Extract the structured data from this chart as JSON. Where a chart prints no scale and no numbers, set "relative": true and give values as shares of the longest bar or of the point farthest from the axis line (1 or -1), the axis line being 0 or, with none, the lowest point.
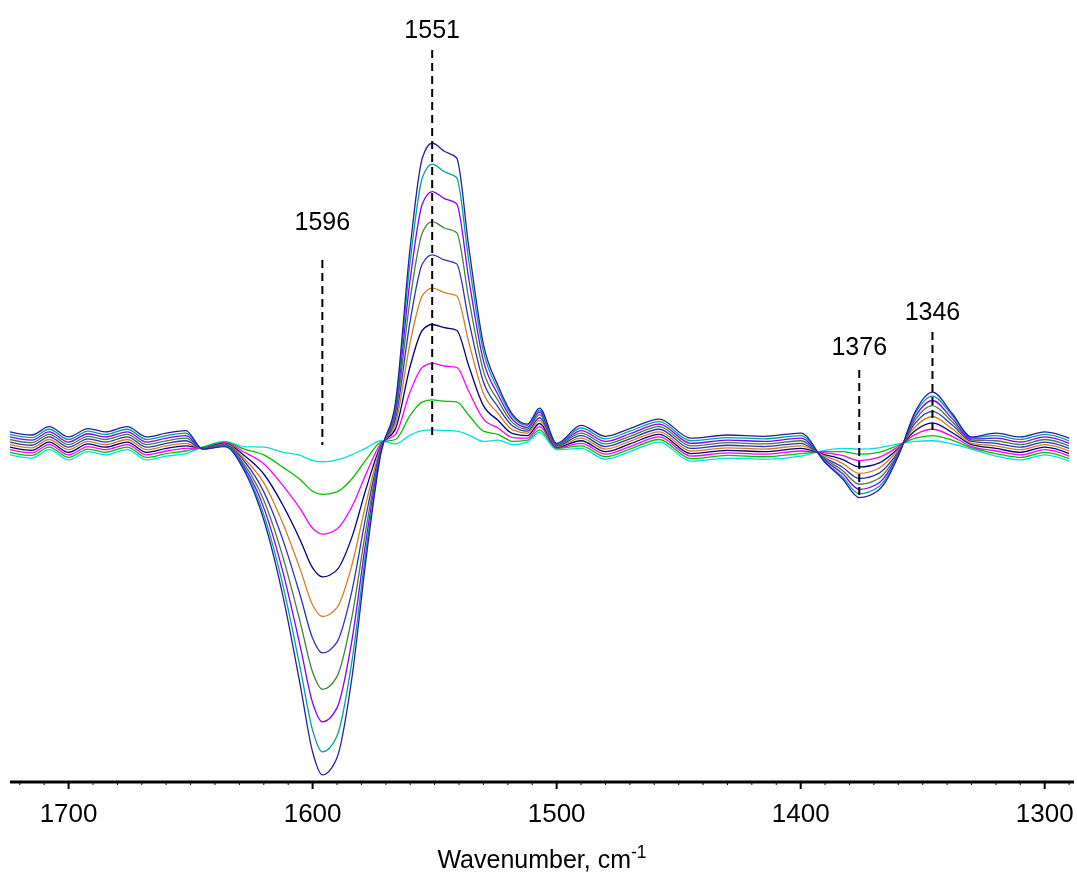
{
  "chart_data": {
    "type": "line",
    "relative": true,
    "xlabel": "Wavenumber, cm$^{-1}$",
    "xlim": [
      1724,
      1288
    ],
    "xticks": [
      {
        "value": 1720,
        "label": null
      },
      {
        "value": 1710,
        "label": null
      },
      1700,
      {
        "value": 1690,
        "label": null
      },
      {
        "value": 1680,
        "label": null
      },
      {
        "value": 1670,
        "label": null
      },
      {
        "value": 1660,
        "label": null
      },
      {
        "value": 1650,
        "label": null
      },
      {
        "value": 1640,
        "label": null
      },
      {
        "value": 1630,
        "label": null
      },
      {
        "value": 1620,
        "label": null
      },
      {
        "value": 1610,
        "label": null
      },
      1600,
      {
        "value": 1590,
        "label": null
      },
      {
        "value": 1580,
        "label": null
      },
      {
        "value": 1570,
        "label": null
      },
      {
        "value": 1560,
        "label": null
      },
      {
        "value": 1550,
        "label": null
      },
      {
        "value": 1540,
        "label": null
      },
      {
        "value": 1530,
        "label": null
      },
      {
        "value": 1520,
        "label": null
      },
      {
        "value": 1510,
        "label": null
      },
      1500,
      {
        "value": 1490,
        "label": null
      },
      {
        "value": 1480,
        "label": null
      },
      {
        "value": 1470,
        "label": null
      },
      {
        "value": 1460,
        "label": null
      },
      {
        "value": 1450,
        "label": null
      },
      {
        "value": 1440,
        "label": null
      },
      {
        "value": 1430,
        "label": null
      },
      {
        "value": 1420,
        "label": null
      },
      {
        "value": 1410,
        "label": null
      },
      1400,
      {
        "value": 1390,
        "label": null
      },
      {
        "value": 1380,
        "label": null
      },
      {
        "value": 1370,
        "label": null
      },
      {
        "value": 1360,
        "label": null
      },
      {
        "value": 1350,
        "label": null
      },
      {
        "value": 1340,
        "label": null
      },
      {
        "value": 1330,
        "label": null
      },
      {
        "value": 1320,
        "label": null
      },
      {
        "value": 1310,
        "label": null
      },
      1300,
      {
        "value": 1290,
        "label": null
      }
    ],
    "x": [
      1724,
      1715,
      1708,
      1700,
      1692,
      1685,
      1676,
      1668,
      1660,
      1652,
      1645,
      1636,
      1628,
      1620,
      1612,
      1605,
      1600,
      1596,
      1590,
      1584,
      1578,
      1572,
      1566,
      1560,
      1555,
      1551,
      1546,
      1541,
      1536,
      1530,
      1524,
      1518,
      1512,
      1507,
      1500,
      1490,
      1480,
      1470,
      1458,
      1445,
      1430,
      1415,
      1400,
      1390,
      1383,
      1376,
      1368,
      1360,
      1353,
      1346,
      1338,
      1330,
      1320,
      1310,
      1300,
      1290
    ],
    "series": [
      {
        "color": "#00e0e0",
        "values": [
          0.512,
          0.507,
          0.52,
          0.504,
          0.517,
          0.512,
          0.52,
          0.504,
          0.51,
          0.514,
          0.524,
          0.533,
          0.525,
          0.524,
          0.516,
          0.511,
          0.503,
          0.501,
          0.504,
          0.512,
          0.523,
          0.534,
          0.529,
          0.543,
          0.55,
          0.551,
          0.55,
          0.549,
          0.543,
          0.533,
          0.535,
          0.528,
          0.532,
          0.547,
          0.52,
          0.522,
          0.505,
          0.517,
          0.532,
          0.502,
          0.507,
          0.505,
          0.51,
          0.519,
          0.522,
          0.521,
          0.523,
          0.529,
          0.533,
          0.534,
          0.529,
          0.521,
          0.51,
          0.504,
          0.512,
          0.502
        ]
      },
      {
        "color": "#00c000",
        "values": [
          0.516,
          0.511,
          0.524,
          0.508,
          0.521,
          0.516,
          0.524,
          0.508,
          0.514,
          0.518,
          0.524,
          0.532,
          0.521,
          0.512,
          0.492,
          0.473,
          0.455,
          0.45,
          0.454,
          0.474,
          0.505,
          0.532,
          0.536,
          0.574,
          0.595,
          0.598,
          0.596,
          0.595,
          0.574,
          0.549,
          0.544,
          0.533,
          0.535,
          0.551,
          0.522,
          0.526,
          0.509,
          0.521,
          0.536,
          0.506,
          0.511,
          0.509,
          0.514,
          0.517,
          0.517,
          0.513,
          0.516,
          0.527,
          0.538,
          0.542,
          0.535,
          0.523,
          0.514,
          0.508,
          0.516,
          0.506
        ]
      },
      {
        "color": "#ff00ff",
        "values": [
          0.52,
          0.515,
          0.528,
          0.512,
          0.525,
          0.52,
          0.528,
          0.512,
          0.518,
          0.522,
          0.523,
          0.531,
          0.516,
          0.498,
          0.463,
          0.427,
          0.397,
          0.388,
          0.396,
          0.43,
          0.483,
          0.53,
          0.544,
          0.611,
          0.649,
          0.655,
          0.651,
          0.649,
          0.611,
          0.568,
          0.554,
          0.539,
          0.538,
          0.556,
          0.523,
          0.53,
          0.513,
          0.525,
          0.54,
          0.51,
          0.515,
          0.513,
          0.518,
          0.515,
          0.511,
          0.503,
          0.508,
          0.525,
          0.544,
          0.552,
          0.541,
          0.525,
          0.518,
          0.512,
          0.52,
          0.51
        ]
      },
      {
        "color": "#000080",
        "values": [
          0.524,
          0.519,
          0.532,
          0.516,
          0.529,
          0.524,
          0.532,
          0.516,
          0.522,
          0.526,
          0.523,
          0.53,
          0.511,
          0.482,
          0.432,
          0.378,
          0.335,
          0.321,
          0.332,
          0.382,
          0.46,
          0.527,
          0.553,
          0.651,
          0.707,
          0.716,
          0.711,
          0.707,
          0.651,
          0.589,
          0.566,
          0.545,
          0.542,
          0.561,
          0.524,
          0.534,
          0.517,
          0.529,
          0.544,
          0.514,
          0.519,
          0.517,
          0.522,
          0.512,
          0.505,
          0.493,
          0.499,
          0.522,
          0.55,
          0.562,
          0.547,
          0.528,
          0.522,
          0.516,
          0.524,
          0.514
        ]
      },
      {
        "color": "#d08020",
        "values": [
          0.528,
          0.523,
          0.536,
          0.52,
          0.533,
          0.528,
          0.536,
          0.52,
          0.526,
          0.53,
          0.522,
          0.529,
          0.506,
          0.468,
          0.403,
          0.332,
          0.277,
          0.259,
          0.273,
          0.338,
          0.438,
          0.525,
          0.561,
          0.688,
          0.761,
          0.773,
          0.766,
          0.761,
          0.688,
          0.608,
          0.577,
          0.551,
          0.546,
          0.566,
          0.525,
          0.538,
          0.521,
          0.533,
          0.548,
          0.518,
          0.523,
          0.521,
          0.526,
          0.51,
          0.499,
          0.483,
          0.491,
          0.52,
          0.556,
          0.572,
          0.553,
          0.53,
          0.526,
          0.52,
          0.528,
          0.518
        ]
      },
      {
        "color": "#3030c0",
        "values": [
          0.532,
          0.527,
          0.54,
          0.524,
          0.537,
          0.532,
          0.54,
          0.524,
          0.53,
          0.534,
          0.522,
          0.528,
          0.502,
          0.454,
          0.377,
          0.291,
          0.225,
          0.202,
          0.219,
          0.297,
          0.419,
          0.522,
          0.569,
          0.722,
          0.811,
          0.825,
          0.817,
          0.811,
          0.722,
          0.626,
          0.587,
          0.557,
          0.549,
          0.57,
          0.526,
          0.542,
          0.525,
          0.537,
          0.552,
          0.522,
          0.527,
          0.525,
          0.53,
          0.507,
          0.493,
          0.475,
          0.483,
          0.517,
          0.562,
          0.58,
          0.559,
          0.533,
          0.53,
          0.524,
          0.532,
          0.522
        ]
      },
      {
        "color": "#408040",
        "values": [
          0.536,
          0.531,
          0.544,
          0.528,
          0.541,
          0.536,
          0.544,
          0.528,
          0.534,
          0.538,
          0.522,
          0.527,
          0.497,
          0.441,
          0.35,
          0.249,
          0.172,
          0.145,
          0.165,
          0.256,
          0.399,
          0.52,
          0.577,
          0.756,
          0.86,
          0.877,
          0.867,
          0.86,
          0.756,
          0.643,
          0.597,
          0.562,
          0.552,
          0.575,
          0.527,
          0.546,
          0.529,
          0.541,
          0.556,
          0.526,
          0.531,
          0.529,
          0.534,
          0.505,
          0.488,
          0.466,
          0.475,
          0.515,
          0.567,
          0.589,
          0.564,
          0.535,
          0.534,
          0.528,
          0.536,
          0.526
        ]
      },
      {
        "color": "#8000ff",
        "values": [
          0.54,
          0.535,
          0.548,
          0.532,
          0.545,
          0.54,
          0.548,
          0.532,
          0.538,
          0.542,
          0.521,
          0.526,
          0.493,
          0.429,
          0.326,
          0.211,
          0.124,
          0.094,
          0.116,
          0.219,
          0.381,
          0.518,
          0.584,
          0.787,
          0.905,
          0.924,
          0.913,
          0.905,
          0.787,
          0.659,
          0.606,
          0.567,
          0.555,
          0.579,
          0.528,
          0.55,
          0.533,
          0.545,
          0.56,
          0.53,
          0.535,
          0.533,
          0.538,
          0.503,
          0.483,
          0.458,
          0.468,
          0.513,
          0.572,
          0.597,
          0.569,
          0.537,
          0.538,
          0.532,
          0.54,
          0.53
        ]
      },
      {
        "color": "#00a0a0",
        "values": [
          0.544,
          0.539,
          0.552,
          0.536,
          0.549,
          0.544,
          0.552,
          0.536,
          0.542,
          0.546,
          0.521,
          0.526,
          0.49,
          0.418,
          0.305,
          0.177,
          0.081,
          0.047,
          0.072,
          0.186,
          0.365,
          0.516,
          0.59,
          0.815,
          0.946,
          0.967,
          0.955,
          0.946,
          0.815,
          0.674,
          0.614,
          0.572,
          0.558,
          0.582,
          0.529,
          0.554,
          0.537,
          0.549,
          0.564,
          0.534,
          0.539,
          0.537,
          0.542,
          0.501,
          0.478,
          0.451,
          0.462,
          0.511,
          0.577,
          0.604,
          0.574,
          0.539,
          0.542,
          0.536,
          0.544,
          0.534
        ]
      },
      {
        "color": "#2020a0",
        "values": [
          0.548,
          0.543,
          0.556,
          0.54,
          0.553,
          0.548,
          0.556,
          0.54,
          0.546,
          0.55,
          0.521,
          0.525,
          0.487,
          0.41,
          0.288,
          0.15,
          0.047,
          0.011,
          0.038,
          0.16,
          0.352,
          0.515,
          0.595,
          0.837,
          0.977,
          1.0,
          0.987,
          0.977,
          0.837,
          0.685,
          0.62,
          0.575,
          0.56,
          0.585,
          0.53,
          0.558,
          0.541,
          0.553,
          0.568,
          0.538,
          0.543,
          0.541,
          0.546,
          0.5,
          0.475,
          0.445,
          0.457,
          0.51,
          0.58,
          0.61,
          0.577,
          0.54,
          0.546,
          0.54,
          0.548,
          0.538
        ]
      }
    ],
    "ref_lines": [
      {
        "axis": "x",
        "value": 1596,
        "label": "1596",
        "line_style": "dashed"
      },
      {
        "axis": "x",
        "value": 1551,
        "label": "1551",
        "line_style": "dashed"
      },
      {
        "axis": "x",
        "value": 1376,
        "label": "1376",
        "line_style": "dashed"
      },
      {
        "axis": "x",
        "value": 1346,
        "label": "1346",
        "line_style": "dashed"
      }
    ]
  }
}
